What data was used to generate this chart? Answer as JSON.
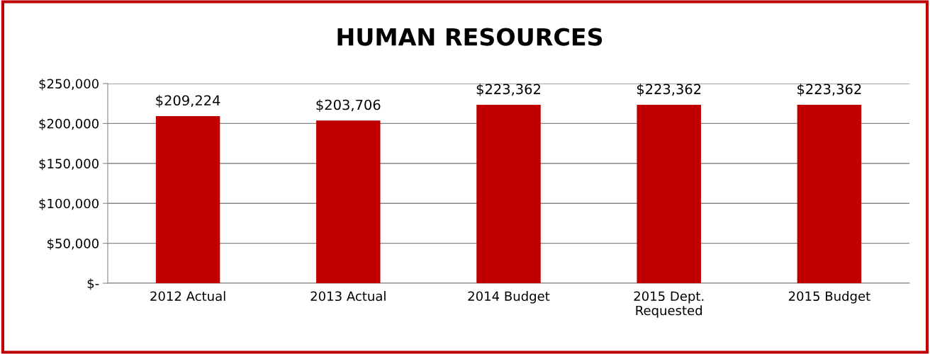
{
  "chart_data": {
    "type": "bar",
    "title": "HUMAN RESOURCES",
    "categories": [
      "2012 Actual",
      "2013 Actual",
      "2014 Budget",
      "2015 Dept. Requested",
      "2015 Budget"
    ],
    "values": [
      209224,
      203706,
      223362,
      223362,
      223362
    ],
    "value_labels": [
      "$209,224",
      "$203,706",
      "$223,362",
      "$223,362",
      "$223,362"
    ],
    "color": "#c00000",
    "ylim": [
      0,
      250000
    ],
    "yticks": [
      {
        "value": 0,
        "label": "$-"
      },
      {
        "value": 50000,
        "label": "$50,000"
      },
      {
        "value": 100000,
        "label": "$100,000"
      },
      {
        "value": 150000,
        "label": "$150,000"
      },
      {
        "value": 200000,
        "label": "$200,000"
      },
      {
        "value": 250000,
        "label": "$250,000"
      }
    ],
    "grid": "y",
    "legend": false
  }
}
